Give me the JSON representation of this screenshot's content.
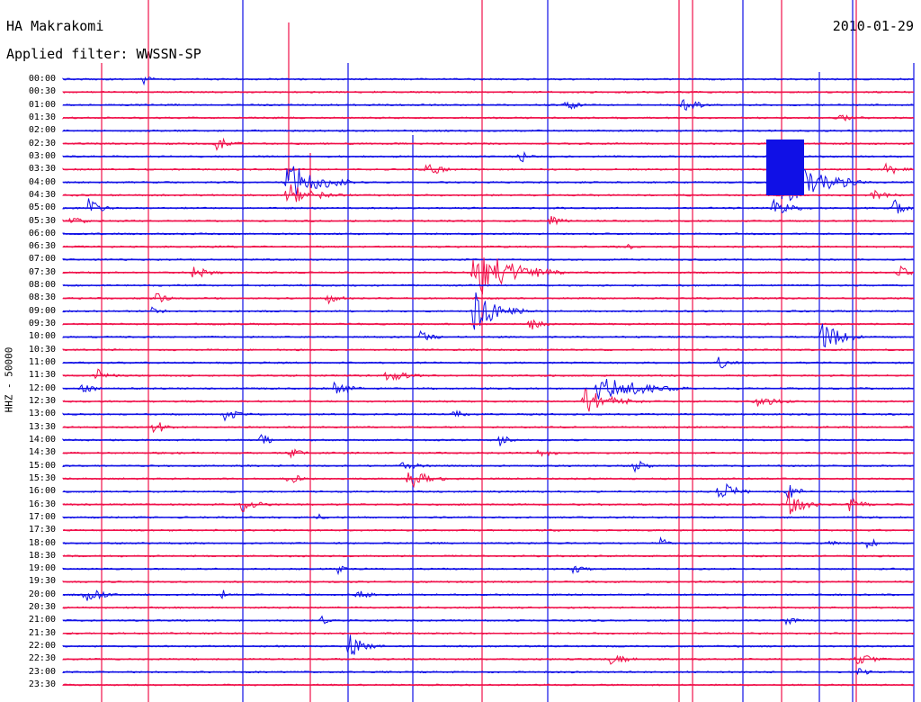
{
  "header": {
    "station": "HA Makrakomi",
    "filter": "Applied filter: WWSSN-SP",
    "date": "2010-01-29",
    "channel": "HHZ - 50000"
  },
  "time_labels": [
    "00:00",
    "00:30",
    "01:00",
    "01:30",
    "02:00",
    "02:30",
    "03:00",
    "03:30",
    "04:00",
    "04:30",
    "05:00",
    "05:30",
    "06:00",
    "06:30",
    "07:00",
    "07:30",
    "08:00",
    "08:30",
    "09:00",
    "09:30",
    "10:00",
    "10:30",
    "11:00",
    "11:30",
    "12:00",
    "12:30",
    "13:00",
    "13:30",
    "14:00",
    "14:30",
    "15:00",
    "15:30",
    "16:00",
    "16:30",
    "17:00",
    "17:30",
    "18:00",
    "18:30",
    "19:00",
    "19:30",
    "20:00",
    "20:30",
    "21:00",
    "21:30",
    "22:00",
    "22:30",
    "23:00",
    "23:30"
  ],
  "colors": {
    "blue_trace": "#1010e6",
    "red_trace": "#f0104a"
  }
}
